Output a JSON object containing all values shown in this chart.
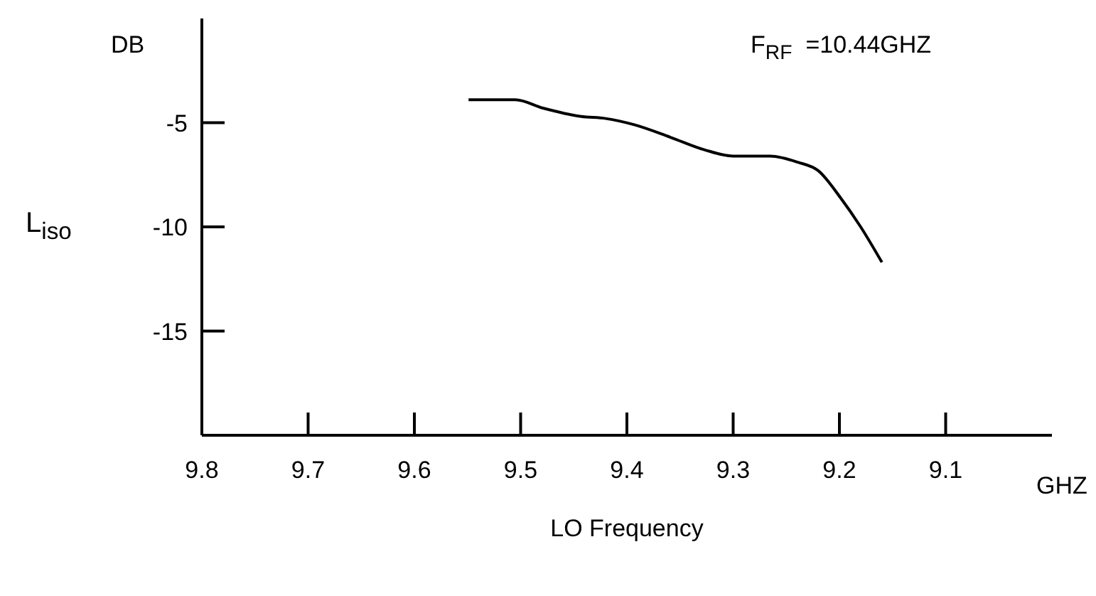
{
  "chart_data": {
    "type": "line",
    "xlabel": "LO Frequency",
    "ylabel": "L$_{iso}$",
    "annotations": [
      "DB",
      "GHZ",
      "F$_{RF}$  =10.44GHZ"
    ],
    "x": [
      9.549,
      9.505,
      9.479,
      9.443,
      9.42,
      9.393,
      9.359,
      9.327,
      9.3,
      9.265,
      9.239,
      9.22,
      9.199,
      9.18,
      9.16
    ],
    "series": [
      {
        "color": "#000000",
        "values": [
          -3.9,
          -3.9,
          -4.3,
          -4.7,
          -4.8,
          -5.1,
          -5.7,
          -6.3,
          -6.6,
          -6.6,
          -6.9,
          -7.3,
          -8.6,
          -10.0,
          -11.7
        ]
      }
    ],
    "xlim": [
      9.8,
      9.0
    ],
    "xticks": [
      9.8,
      9.7,
      9.6,
      9.5,
      9.4,
      9.3,
      9.2,
      9.1
    ],
    "ylim": [
      -20,
      0
    ],
    "yticks": [
      -5,
      -10,
      -15
    ],
    "grid": false,
    "legend": false,
    "marker": "none",
    "line_style": "solid"
  }
}
